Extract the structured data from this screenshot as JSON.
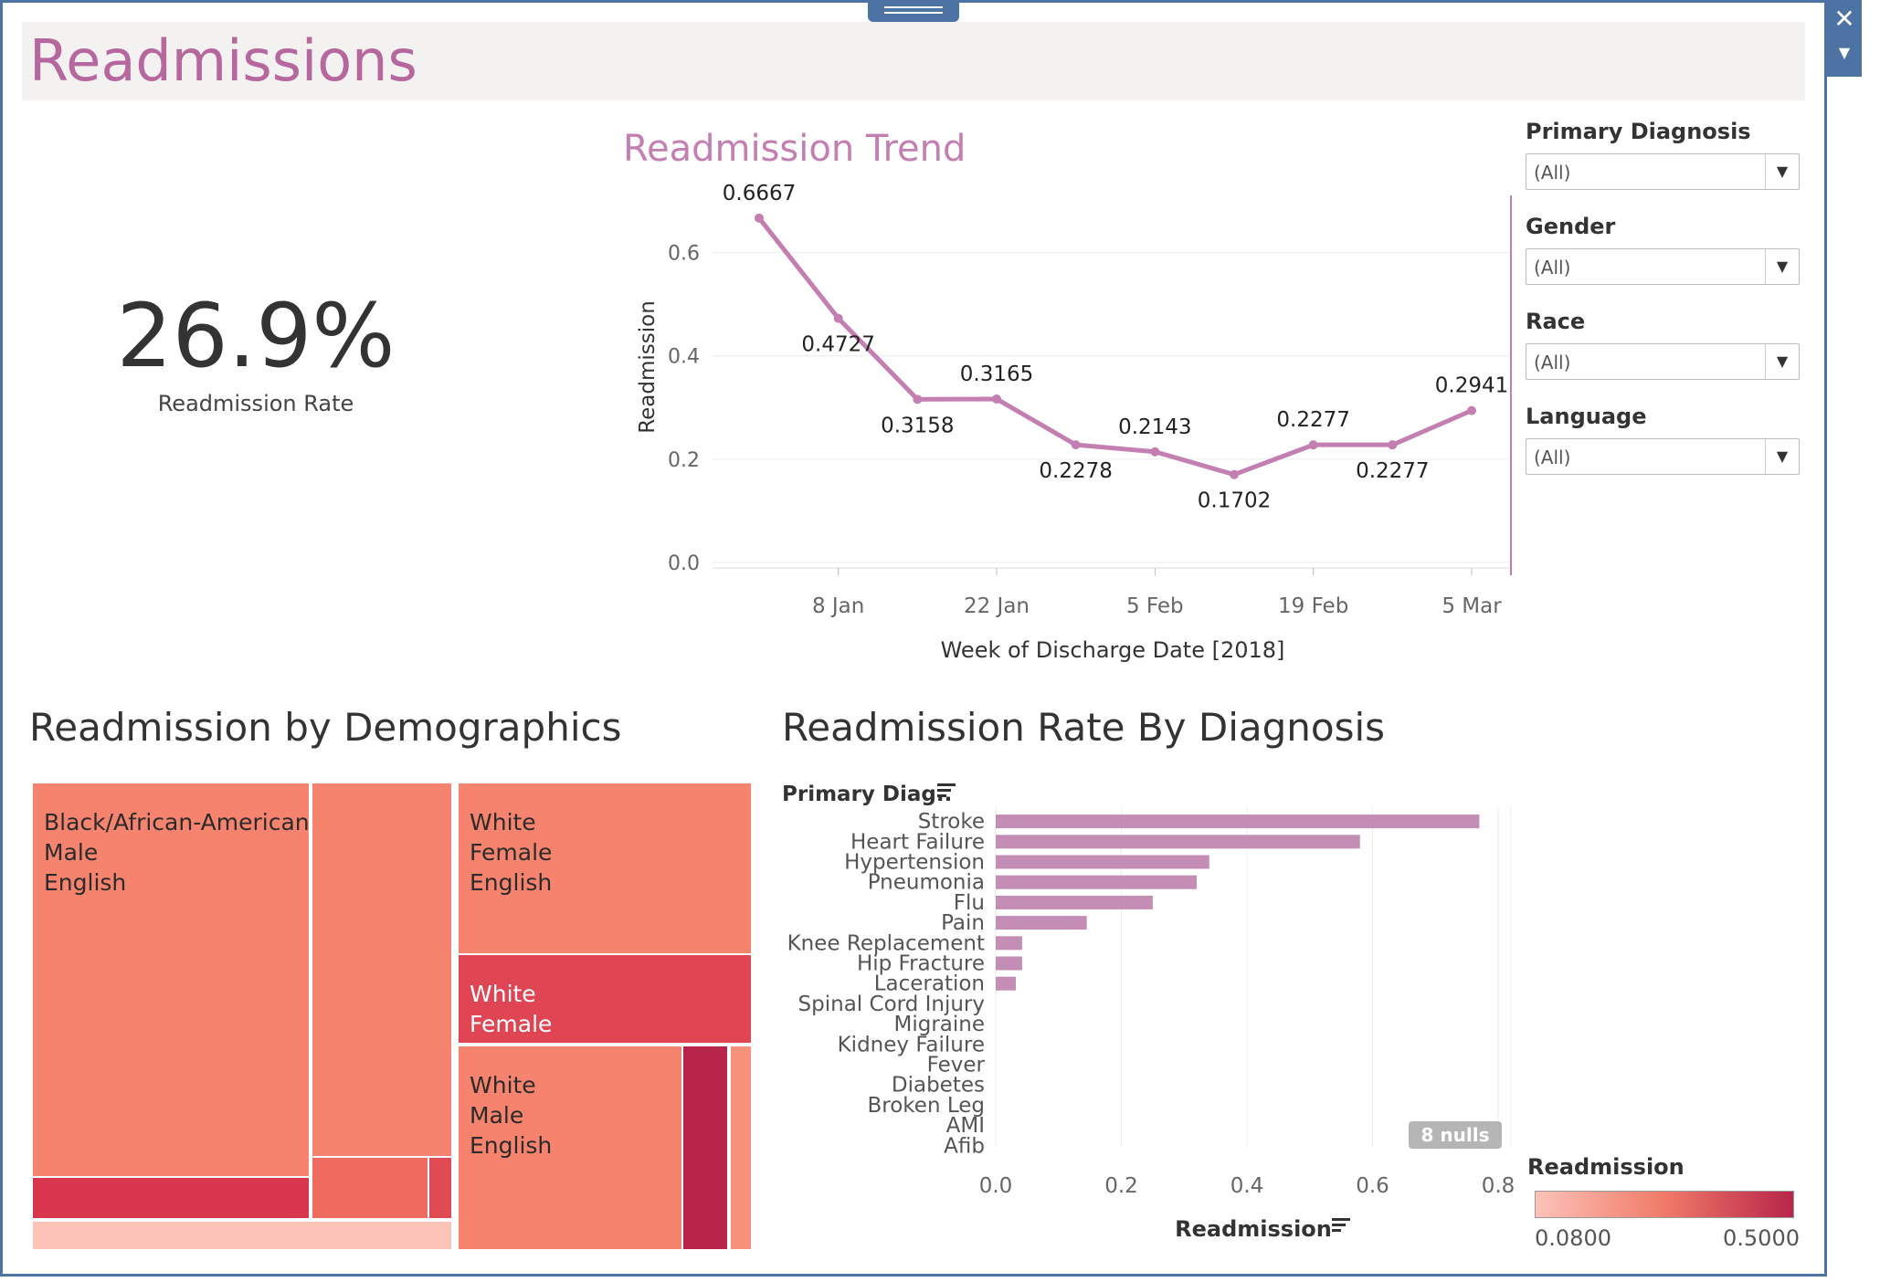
{
  "dashboard": {
    "title": "Readmissions"
  },
  "kpi": {
    "value": "26.9%",
    "label": "Readmission Rate"
  },
  "filters": [
    {
      "label": "Primary Diagnosis",
      "value": "(All)"
    },
    {
      "label": "Gender",
      "value": "(All)"
    },
    {
      "label": "Race",
      "value": "(All)"
    },
    {
      "label": "Language",
      "value": "(All)"
    }
  ],
  "icons": {
    "close": "close-icon",
    "menu": "dropdown-arrow-icon"
  },
  "colors": {
    "accent": "#c47fb2",
    "title": "#b6679e",
    "bar": "#c48db5",
    "scale_low": "#fdc2b8",
    "scale_high": "#b8254a"
  },
  "demographics": {
    "title": "Readmission by Demographics",
    "cells": [
      {
        "text": "Black/African-American\nMale\nEnglish"
      },
      {
        "text": "White\nFemale\nEnglish"
      },
      {
        "text": "White\nFemale"
      },
      {
        "text": "White\nMale\nEnglish"
      }
    ]
  },
  "legend": {
    "title": "Readmission",
    "min": "0.0800",
    "max": "0.5000"
  },
  "chart_data": [
    {
      "type": "line",
      "title": "Readmission Trend",
      "xlabel": "Week of Discharge Date [2018]",
      "ylabel": "Readmission",
      "x_ticks": [
        "8 Jan",
        "22 Jan",
        "5 Feb",
        "19 Feb",
        "5 Mar"
      ],
      "y_ticks": [
        "0.0",
        "0.2",
        "0.4",
        "0.6"
      ],
      "ylim": [
        0,
        0.7
      ],
      "x": [
        "2018-01-01",
        "2018-01-08",
        "2018-01-15",
        "2018-01-22",
        "2018-01-29",
        "2018-02-05",
        "2018-02-12",
        "2018-02-19",
        "2018-02-26",
        "2018-03-05"
      ],
      "values": [
        0.6667,
        0.4727,
        0.3158,
        0.3165,
        0.2278,
        0.2143,
        0.1702,
        0.2277,
        0.2277,
        0.2941
      ],
      "labels": [
        "0.6667",
        "0.4727",
        "0.3158",
        "0.3165",
        "0.2278",
        "0.2143",
        "0.1702",
        "0.2277",
        "0.2277",
        "0.2941"
      ],
      "grid": true
    },
    {
      "type": "bar",
      "orientation": "horizontal",
      "title": "Readmission Rate By Diagnosis",
      "category_header": "Primary Diag..",
      "xlabel": "Readmission",
      "categories": [
        "Stroke",
        "Heart Failure",
        "Hypertension",
        "Pneumonia",
        "Flu",
        "Pain",
        "Knee Replacement",
        "Hip Fracture",
        "Laceration",
        "Spinal Cord Injury",
        "Migraine",
        "Kidney Failure",
        "Fever",
        "Diabetes",
        "Broken Leg",
        "AMI",
        "Afib"
      ],
      "values": [
        0.77,
        0.58,
        0.34,
        0.32,
        0.25,
        0.145,
        0.042,
        0.042,
        0.032,
        null,
        null,
        null,
        null,
        null,
        null,
        null,
        null
      ],
      "x_ticks": [
        "0.0",
        "0.2",
        "0.4",
        "0.6",
        "0.8"
      ],
      "xlim": [
        0,
        0.8
      ],
      "nulls_badge": "8 nulls",
      "grid": true
    }
  ]
}
